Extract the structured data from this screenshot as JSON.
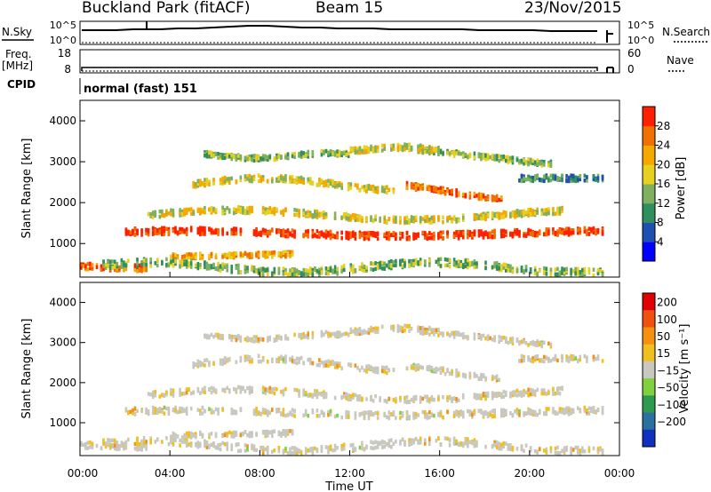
{
  "header": {
    "station": "Buckland Park (fitACF)",
    "beam": "Beam 15",
    "date": "23/Nov/2015"
  },
  "aux_panels": {
    "nsky_label": "N.Sky",
    "nsearch_label": "N.Search",
    "noise_ticks": [
      "10^5",
      "10^0"
    ],
    "freq_label": "Freq.",
    "freq_unit": "[MHz]",
    "freq_ticks": [
      "18",
      "8"
    ],
    "nave_label": "Nave",
    "nave_ticks": [
      "60",
      "0"
    ],
    "cpid_label": "CPID",
    "cpid_value": "normal (fast) 151"
  },
  "chart_data": [
    {
      "type": "heatmap",
      "name": "Power",
      "ylabel": "Slant Range [km]",
      "ylim": [
        180,
        4500
      ],
      "yticks": [
        1000,
        2000,
        3000,
        4000
      ],
      "xlim": [
        0,
        24
      ],
      "colorbar_label": "Power [dB]",
      "colorbar_ticks": [
        "4",
        "8",
        "12",
        "16",
        "20",
        "24",
        "28"
      ],
      "colorbar_colors": [
        "#0000ff",
        "#1f4fb0",
        "#2f8f5f",
        "#7fb060",
        "#e8d020",
        "#f5a800",
        "#f07000",
        "#ff2000"
      ]
    },
    {
      "type": "heatmap",
      "name": "Velocity",
      "ylabel": "Slant Range [km]",
      "ylim": [
        180,
        4500
      ],
      "yticks": [
        1000,
        2000,
        3000,
        4000
      ],
      "xlim": [
        0,
        24
      ],
      "xlabel": "Time UT",
      "xticks": [
        "00:00",
        "04:00",
        "08:00",
        "12:00",
        "16:00",
        "20:00",
        "00:00"
      ],
      "colorbar_label": "Velocity [m s⁻¹]",
      "colorbar_ticks": [
        "200",
        "100",
        "50",
        "15",
        "−15",
        "−50",
        "−100",
        "−200"
      ],
      "colorbar_colors": [
        "#1030c0",
        "#2a70a0",
        "#2e9a50",
        "#80d040",
        "#c8c8c0",
        "#f0c020",
        "#f59010",
        "#f05010",
        "#e00000"
      ]
    }
  ]
}
